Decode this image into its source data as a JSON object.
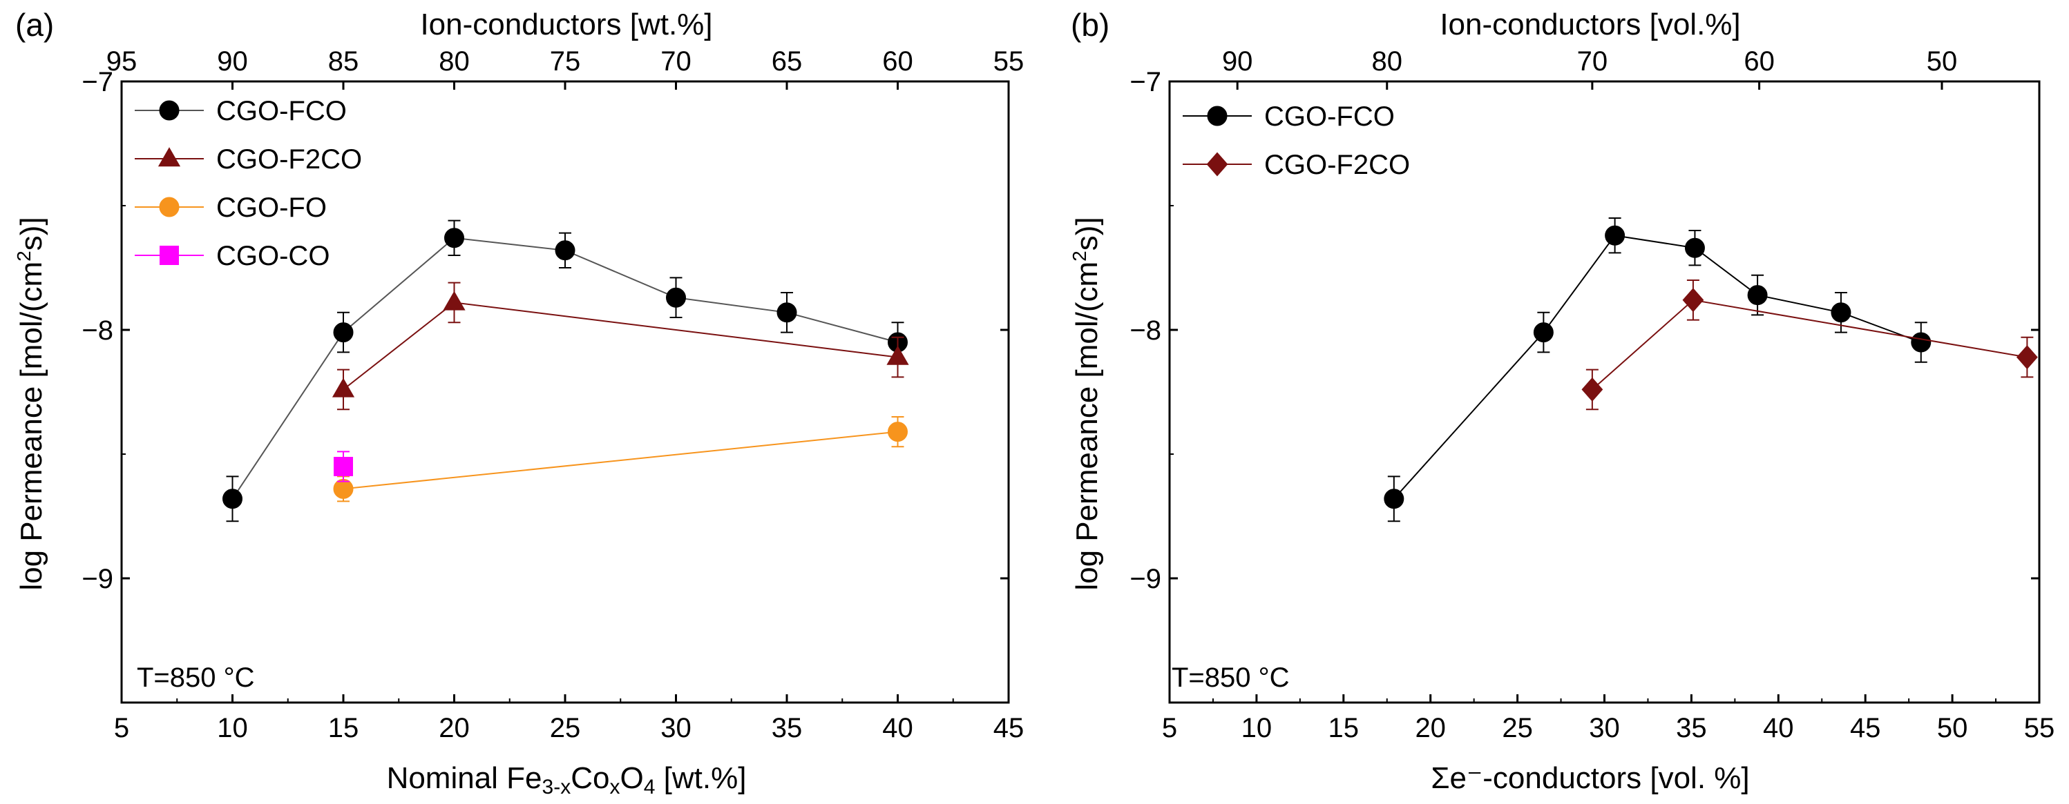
{
  "figure_caption_panels": [
    "(a)",
    "(b)"
  ],
  "chart_data": [
    {
      "type": "line",
      "panel_label": "(a)",
      "xlabel_parts": {
        "prefix": "Nominal Fe",
        "sub1": "3-x",
        "mid": "Co",
        "sub2": "x",
        "mid2": "O",
        "sub3": "4",
        "suffix": " [wt.%]"
      },
      "top_xlabel": "Ion-conductors [wt.%]",
      "ylabel_parts": {
        "prefix": "log Permeance [mol/(cm",
        "sup": "2",
        "suffix": "s)]"
      },
      "xlim": [
        5,
        45
      ],
      "ylim": [
        -9.5,
        -7
      ],
      "x_ticks": [
        5,
        10,
        15,
        20,
        25,
        30,
        35,
        40,
        45
      ],
      "y_ticks": [
        -9,
        -8,
        -7
      ],
      "top_ticks": [
        {
          "value": 95,
          "label": "95"
        },
        {
          "value": 90,
          "label": "90"
        },
        {
          "value": 85,
          "label": "85"
        },
        {
          "value": 80,
          "label": "80"
        },
        {
          "value": 75,
          "label": "75"
        },
        {
          "value": 70,
          "label": "70"
        },
        {
          "value": 65,
          "label": "65"
        },
        {
          "value": 60,
          "label": "60"
        },
        {
          "value": 55,
          "label": "55"
        }
      ],
      "annotation": "T=850 °C",
      "series": [
        {
          "name": "CGO-FCO",
          "marker": "circle",
          "color": "#000000",
          "line": "#555555",
          "x": [
            10,
            15,
            20,
            25,
            30,
            35,
            40
          ],
          "y": [
            -8.68,
            -8.01,
            -7.63,
            -7.68,
            -7.87,
            -7.93,
            -8.05
          ],
          "err": [
            0.09,
            0.08,
            0.07,
            0.07,
            0.08,
            0.08,
            0.08
          ]
        },
        {
          "name": "CGO-F2CO",
          "marker": "triangle",
          "color": "#7a1010",
          "line": "#7a1010",
          "x": [
            15,
            20,
            40
          ],
          "y": [
            -8.24,
            -7.89,
            -8.11
          ],
          "err": [
            0.08,
            0.08,
            0.08
          ]
        },
        {
          "name": "CGO-FO",
          "marker": "circle",
          "color": "#f7941d",
          "line": "#f7941d",
          "x": [
            15,
            40
          ],
          "y": [
            -8.64,
            -8.41
          ],
          "err": [
            0.05,
            0.06
          ]
        },
        {
          "name": "CGO-CO",
          "marker": "square",
          "color": "#ff00ff",
          "line": "#ff00ff",
          "x": [
            15
          ],
          "y": [
            -8.55
          ],
          "err": [
            0.06
          ]
        }
      ]
    },
    {
      "type": "line",
      "panel_label": "(b)",
      "xlabel": "Σe⁻-conductors [vol. %]",
      "top_xlabel": "Ion-conductors [vol.%]",
      "ylabel_parts": {
        "prefix": "log Permeance [mol/(cm",
        "sup": "2",
        "suffix": "s)]"
      },
      "xlim": [
        5,
        55
      ],
      "ylim": [
        -9.5,
        -7
      ],
      "x_ticks": [
        5,
        10,
        15,
        20,
        25,
        30,
        35,
        40,
        45,
        50,
        55
      ],
      "y_ticks": [
        -9,
        -8,
        -7
      ],
      "top_ticks": [
        {
          "value": 90,
          "label": "90"
        },
        {
          "value": 80,
          "label": "80"
        },
        {
          "value": 70,
          "label": "70"
        },
        {
          "value": 60,
          "label": "60"
        },
        {
          "value": 50,
          "label": "50"
        }
      ],
      "annotation": "T=850 °C",
      "series": [
        {
          "name": "CGO-FCO",
          "marker": "circle",
          "color": "#000000",
          "line": "#000000",
          "x": [
            17.9,
            26.5,
            30.6,
            35.2,
            38.8,
            43.6,
            48.2
          ],
          "y": [
            -8.68,
            -8.01,
            -7.62,
            -7.67,
            -7.86,
            -7.93,
            -8.05
          ],
          "err": [
            0.09,
            0.08,
            0.07,
            0.07,
            0.08,
            0.08,
            0.08
          ]
        },
        {
          "name": "CGO-F2CO",
          "marker": "diamond",
          "color": "#7a1010",
          "line": "#7a1010",
          "x": [
            29.3,
            35.1,
            54.3
          ],
          "y": [
            -8.24,
            -7.88,
            -8.11
          ],
          "err": [
            0.08,
            0.08,
            0.08
          ]
        }
      ]
    }
  ]
}
